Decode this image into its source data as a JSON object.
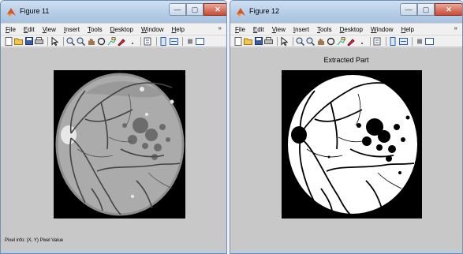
{
  "windows": [
    {
      "title": "Figure 11",
      "menu": [
        "File",
        "Edit",
        "View",
        "Insert",
        "Tools",
        "Desktop",
        "Window",
        "Help"
      ],
      "status_text": "Pixel info: (X, Y)  Pixel Value",
      "axes_title": ""
    },
    {
      "title": "Figure 12",
      "menu": [
        "File",
        "Edit",
        "View",
        "Insert",
        "Tools",
        "Desktop",
        "Window",
        "Help"
      ],
      "status_text": "",
      "axes_title": "Extracted Part"
    }
  ],
  "controls": {
    "minimize": "—",
    "maximize": "▢",
    "close": "✕",
    "overflow": "»"
  },
  "icons": [
    "matlab-logo-icon",
    "new-figure-icon",
    "open-icon",
    "save-icon",
    "print-icon",
    "pointer-icon",
    "zoom-in-icon",
    "zoom-out-icon",
    "pan-icon",
    "rotate-icon",
    "data-cursor-icon",
    "brush-icon",
    "link-icon",
    "colorbar-icon",
    "legend-icon",
    "hide-tools-icon",
    "show-tools-icon"
  ],
  "colors": {
    "titlebar": "#b6cde6",
    "figure_bg": "#c8c8c8",
    "image_bg": "#000000",
    "retina_gray": "#a9a9a9",
    "retina_dark": "#7a7a7a",
    "vessel": "#3a3a3a",
    "extracted": "#ffffff"
  }
}
